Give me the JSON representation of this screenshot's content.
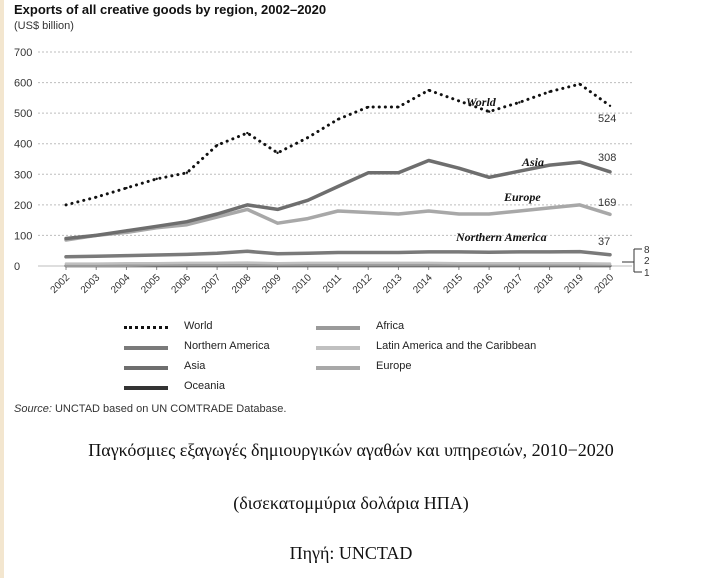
{
  "chart_data": {
    "type": "line",
    "title": "Exports of all creative goods by region, 2002–2020",
    "subtitle": "(US$ billion)",
    "ylim": [
      0,
      700
    ],
    "yticks": [
      0,
      100,
      200,
      300,
      400,
      500,
      600,
      700
    ],
    "grid": true,
    "categories": [
      "2002",
      "2003",
      "2004",
      "2005",
      "2006",
      "2007",
      "2008",
      "2009",
      "2010",
      "2011",
      "2012",
      "2013",
      "2014",
      "2015",
      "2016",
      "2017",
      "2018",
      "2019",
      "2020"
    ],
    "series": [
      {
        "name": "World",
        "color": "#111111",
        "style": "dotted",
        "values": [
          200,
          225,
          255,
          285,
          305,
          395,
          435,
          370,
          420,
          480,
          520,
          520,
          575,
          540,
          505,
          535,
          570,
          595,
          524
        ],
        "inline_label": "World",
        "end_label": "524"
      },
      {
        "name": "Asia",
        "color": "#6e6e6e",
        "style": "solid",
        "values": [
          90,
          100,
          115,
          130,
          145,
          170,
          200,
          185,
          215,
          260,
          305,
          305,
          345,
          320,
          290,
          310,
          330,
          340,
          308
        ],
        "inline_label": "Asia",
        "end_label": "308"
      },
      {
        "name": "Europe",
        "color": "#a8a8a8",
        "style": "solid",
        "values": [
          85,
          100,
          110,
          125,
          135,
          160,
          185,
          140,
          155,
          180,
          175,
          170,
          180,
          170,
          170,
          180,
          190,
          200,
          169
        ],
        "inline_label": "Europe",
        "end_label": "169"
      },
      {
        "name": "Northern America",
        "color": "#7a7a7a",
        "style": "solid",
        "values": [
          30,
          32,
          34,
          36,
          38,
          42,
          48,
          40,
          42,
          44,
          44,
          44,
          46,
          46,
          45,
          46,
          46,
          47,
          37
        ],
        "inline_label": "Northern America",
        "end_label": "37"
      },
      {
        "name": "Latin America and the Caribbean",
        "color": "#c0c0c0",
        "style": "solid",
        "values": [
          8,
          8,
          9,
          9,
          10,
          10,
          11,
          9,
          10,
          10,
          10,
          10,
          10,
          9,
          9,
          9,
          9,
          9,
          8
        ],
        "end_label": "8"
      },
      {
        "name": "Africa",
        "color": "#9a9a9a",
        "style": "solid",
        "values": [
          1,
          1,
          1,
          2,
          2,
          2,
          2,
          2,
          2,
          2,
          2,
          2,
          2,
          2,
          2,
          2,
          2,
          2,
          2
        ],
        "end_label": "2"
      },
      {
        "name": "Oceania",
        "color": "#333333",
        "style": "solid",
        "values": [
          1,
          1,
          1,
          1,
          1,
          1,
          1,
          1,
          1,
          1,
          1,
          1,
          1,
          1,
          1,
          1,
          1,
          1,
          1
        ],
        "end_label": "1"
      }
    ],
    "legend": [
      {
        "name": "World",
        "style": "dotted",
        "color": "#111111"
      },
      {
        "name": "Africa",
        "style": "solid",
        "color": "#9a9a9a"
      },
      {
        "name": "Northern America",
        "style": "solid",
        "color": "#7a7a7a"
      },
      {
        "name": "Latin America and the Caribbean",
        "style": "solid",
        "color": "#c0c0c0"
      },
      {
        "name": "Asia",
        "style": "solid",
        "color": "#6e6e6e"
      },
      {
        "name": "Europe",
        "style": "solid",
        "color": "#a8a8a8"
      },
      {
        "name": "Oceania",
        "style": "solid",
        "color": "#333333"
      }
    ],
    "source_prefix": "Source:",
    "source_text": " UNCTAD based on UN COMTRADE Database."
  },
  "caption": {
    "line1": "Παγκόσμιες εξαγωγές δημιουργικών αγαθών και υπηρεσιών, 2010−2020",
    "line2": "(δισεκατομμύρια δολάρια ΗΠΑ)",
    "line3": "Πηγή: UNCTAD"
  }
}
